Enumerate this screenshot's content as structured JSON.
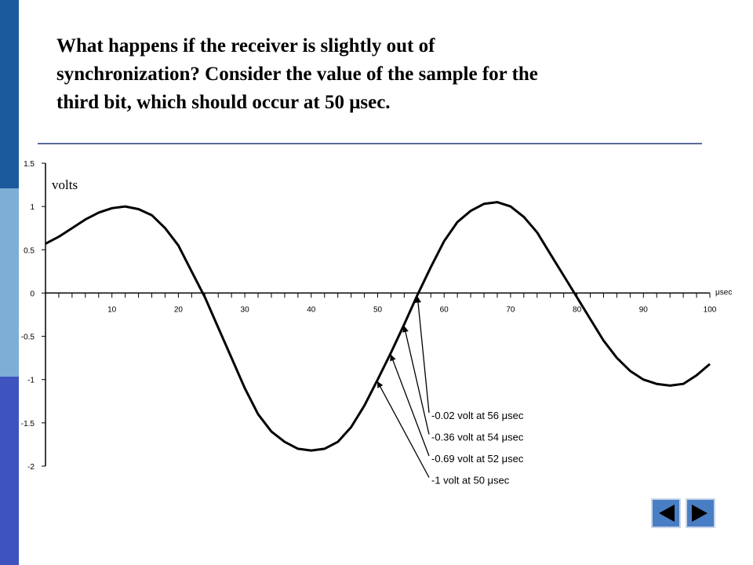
{
  "chart_data": {
    "type": "line",
    "title_lines": [
      "What happens if the receiver is slightly out of",
      "synchronization?  Consider the value of the sample for the",
      "third bit, which should occur at 50 μsec."
    ],
    "y_label": "volts",
    "x_label": "μsec",
    "x": [
      0,
      2,
      4,
      6,
      8,
      10,
      12,
      14,
      16,
      18,
      20,
      22,
      24,
      26,
      28,
      30,
      32,
      34,
      36,
      38,
      40,
      42,
      44,
      46,
      48,
      50,
      52,
      54,
      56,
      58,
      60,
      62,
      64,
      66,
      68,
      70,
      72,
      74,
      76,
      78,
      80,
      82,
      84,
      86,
      88,
      90,
      92,
      94,
      96,
      98,
      100
    ],
    "values": [
      0.57,
      0.65,
      0.75,
      0.85,
      0.93,
      0.98,
      1.0,
      0.97,
      0.9,
      0.75,
      0.55,
      0.25,
      -0.05,
      -0.4,
      -0.75,
      -1.1,
      -1.4,
      -1.6,
      -1.72,
      -1.8,
      -1.82,
      -1.8,
      -1.72,
      -1.55,
      -1.3,
      -1.0,
      -0.69,
      -0.36,
      -0.02,
      0.3,
      0.6,
      0.82,
      0.95,
      1.03,
      1.05,
      1.0,
      0.88,
      0.7,
      0.45,
      0.2,
      -0.05,
      -0.3,
      -0.55,
      -0.75,
      -0.9,
      -1.0,
      -1.05,
      -1.07,
      -1.05,
      -0.95,
      -0.82
    ],
    "color": "#000000",
    "xlim": [
      0,
      100
    ],
    "ylim": [
      -2,
      1.5
    ],
    "xticks": [
      10,
      20,
      30,
      40,
      50,
      60,
      70,
      80,
      90,
      100
    ],
    "minor_xticks": [
      2,
      4,
      6,
      8,
      12,
      14,
      16,
      18,
      22,
      24,
      26,
      28,
      32,
      34,
      36,
      38,
      42,
      44,
      46,
      48,
      52,
      54,
      56,
      58,
      62,
      64,
      66,
      68,
      72,
      74,
      76,
      78,
      82,
      84,
      86,
      88,
      92,
      94,
      96,
      98
    ],
    "yticks": [
      1.5,
      1,
      0.5,
      0,
      -0.5,
      -1,
      -1.5,
      -2
    ],
    "annotations": [
      {
        "text": "-0.02 volt at 56 μsec",
        "x": 56,
        "y": -0.02
      },
      {
        "text": "-0.36 volt at 54 μsec",
        "x": 54,
        "y": -0.36
      },
      {
        "text": "-0.69 volt at 52 μsec",
        "x": 52,
        "y": -0.69
      },
      {
        "text": "-1 volt at 50 μsec",
        "x": 50,
        "y": -1
      }
    ]
  }
}
